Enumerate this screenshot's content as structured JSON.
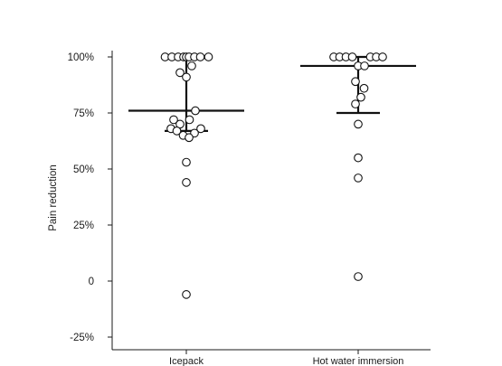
{
  "chart_data": {
    "type": "scatter",
    "subtype": "dot-strip with median and interquartile range bars",
    "ylabel": "Pain reduction",
    "xlabel": "",
    "y_unit": "%",
    "ylim": [
      -25,
      100
    ],
    "yticks": [
      -25,
      0,
      25,
      50,
      75,
      100
    ],
    "ytick_labels": [
      "-25%",
      "0",
      "25%",
      "50%",
      "75%",
      "100%"
    ],
    "grid": false,
    "legend": "none",
    "categories": [
      "Icepack",
      "Hot water immersion"
    ],
    "groups": [
      {
        "label": "Icepack",
        "points": [
          {
            "offset": -0.235,
            "y": 100
          },
          {
            "offset": -0.16,
            "y": 100
          },
          {
            "offset": -0.09,
            "y": 100
          },
          {
            "offset": -0.03,
            "y": 100
          },
          {
            "offset": 0.0,
            "y": 100
          },
          {
            "offset": 0.03,
            "y": 100
          },
          {
            "offset": 0.09,
            "y": 100
          },
          {
            "offset": 0.155,
            "y": 100
          },
          {
            "offset": 0.245,
            "y": 100
          },
          {
            "offset": 0.06,
            "y": 96
          },
          {
            "offset": -0.07,
            "y": 93
          },
          {
            "offset": 0.0,
            "y": 91
          },
          {
            "offset": 0.1,
            "y": 76
          },
          {
            "offset": -0.14,
            "y": 72
          },
          {
            "offset": 0.035,
            "y": 72
          },
          {
            "offset": -0.07,
            "y": 70
          },
          {
            "offset": -0.17,
            "y": 68
          },
          {
            "offset": -0.105,
            "y": 67
          },
          {
            "offset": 0.16,
            "y": 68
          },
          {
            "offset": 0.09,
            "y": 66
          },
          {
            "offset": -0.035,
            "y": 65
          },
          {
            "offset": 0.03,
            "y": 64
          },
          {
            "offset": 0.0,
            "y": 53
          },
          {
            "offset": 0.0,
            "y": 44
          },
          {
            "offset": 0.0,
            "y": -6
          }
        ],
        "median": 76,
        "q1": 67,
        "q3": 100
      },
      {
        "label": "Hot water immersion",
        "points": [
          {
            "offset": -0.27,
            "y": 100
          },
          {
            "offset": -0.205,
            "y": 100
          },
          {
            "offset": -0.135,
            "y": 100
          },
          {
            "offset": -0.065,
            "y": 100
          },
          {
            "offset": 0.135,
            "y": 100
          },
          {
            "offset": 0.2,
            "y": 100
          },
          {
            "offset": 0.27,
            "y": 100
          },
          {
            "offset": 0.0,
            "y": 96
          },
          {
            "offset": 0.07,
            "y": 96
          },
          {
            "offset": -0.03,
            "y": 89
          },
          {
            "offset": 0.065,
            "y": 86
          },
          {
            "offset": 0.03,
            "y": 82
          },
          {
            "offset": -0.03,
            "y": 79
          },
          {
            "offset": 0.0,
            "y": 70
          },
          {
            "offset": 0.0,
            "y": 55
          },
          {
            "offset": 0.0,
            "y": 46
          },
          {
            "offset": 0.0,
            "y": 2
          }
        ],
        "median": 96,
        "q1": 75,
        "q3": 100
      }
    ]
  }
}
